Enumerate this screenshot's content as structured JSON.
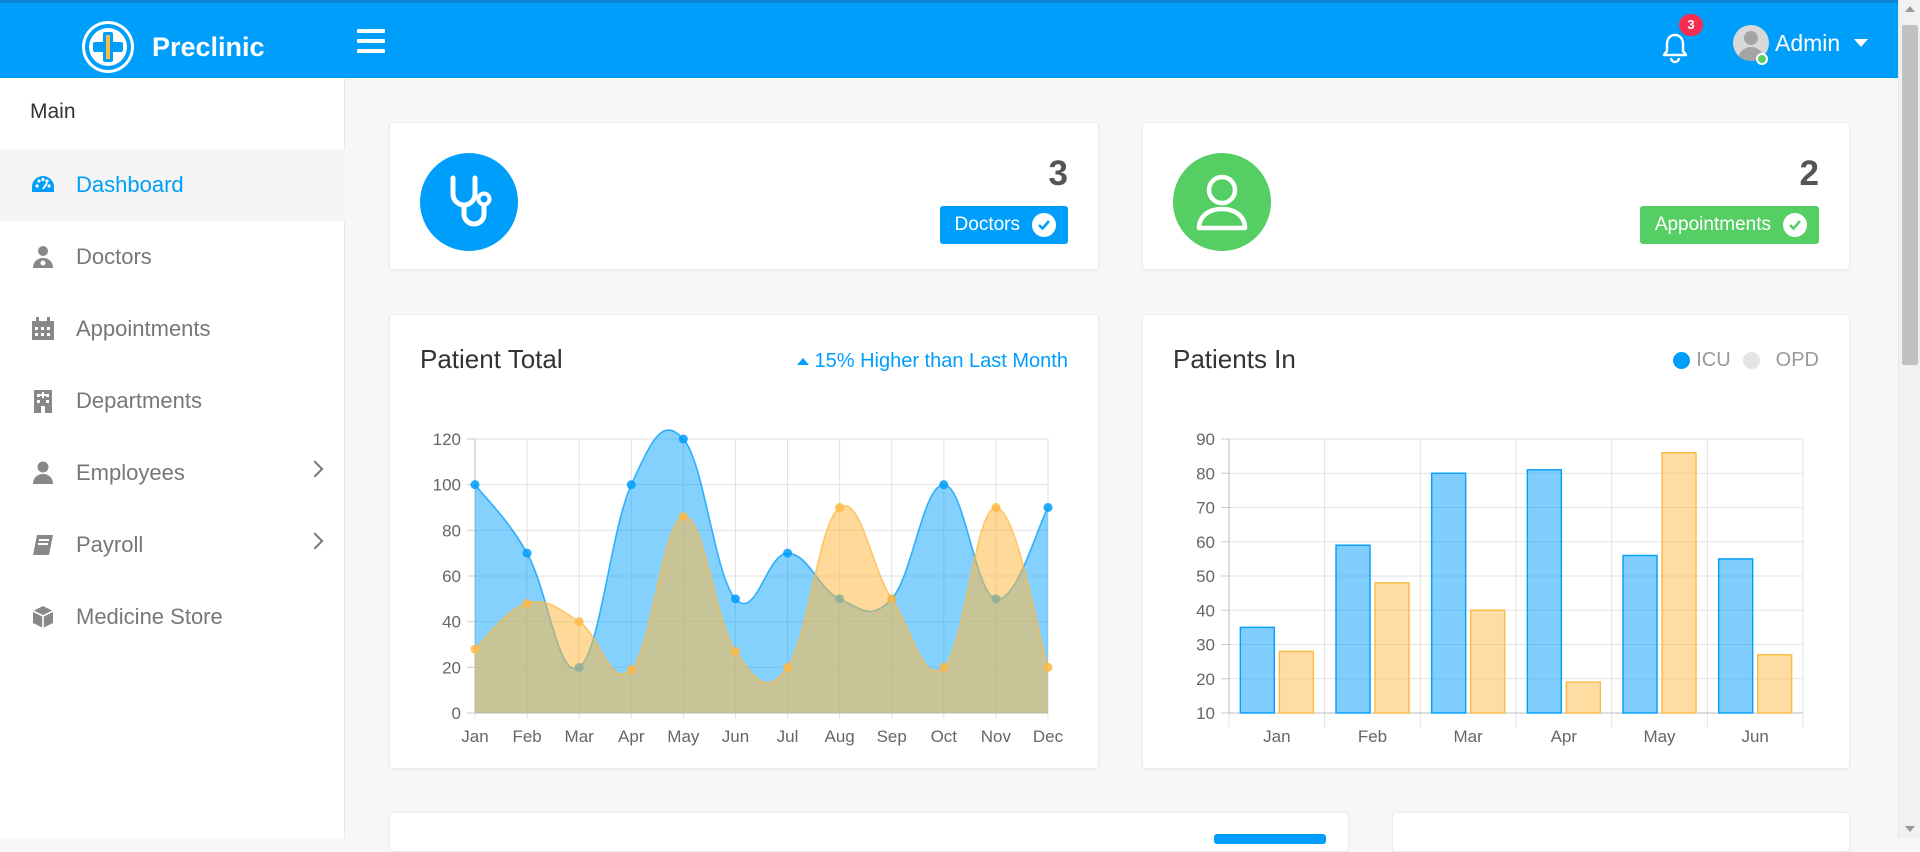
{
  "brand": {
    "name": "Preclinic",
    "accent": "#009efb"
  },
  "header": {
    "notification_count": "3",
    "user_name": "Admin"
  },
  "sidebar": {
    "section_title": "Main",
    "items": [
      {
        "label": "Dashboard",
        "icon": "dashboard-icon",
        "active": true
      },
      {
        "label": "Doctors",
        "icon": "doctor-icon"
      },
      {
        "label": "Appointments",
        "icon": "calendar-icon"
      },
      {
        "label": "Departments",
        "icon": "hospital-icon"
      },
      {
        "label": "Employees",
        "icon": "user-icon",
        "has_submenu": true
      },
      {
        "label": "Payroll",
        "icon": "book-icon",
        "has_submenu": true
      },
      {
        "label": "Medicine Store",
        "icon": "cube-icon"
      }
    ]
  },
  "stats": {
    "doctors": {
      "count": "3",
      "label": "Doctors",
      "color": "#009efb",
      "icon": "stethoscope-icon"
    },
    "appointments": {
      "count": "2",
      "label": "Appointments",
      "color": "#55ce63",
      "icon": "user-icon"
    }
  },
  "patient_total": {
    "title": "Patient Total",
    "growth": "15% Higher than Last Month"
  },
  "patients_in": {
    "title": "Patients In",
    "legend": [
      "ICU",
      "OPD"
    ]
  },
  "chart_data": [
    {
      "type": "area",
      "title": "Patient Total",
      "categories": [
        "Jan",
        "Feb",
        "Mar",
        "Apr",
        "May",
        "Jun",
        "Jul",
        "Aug",
        "Sep",
        "Oct",
        "Nov",
        "Dec"
      ],
      "series": [
        {
          "values": [
            100,
            70,
            20,
            100,
            120,
            50,
            70,
            50,
            50,
            100,
            50,
            90
          ],
          "color": "#009efb"
        },
        {
          "values": [
            28,
            48,
            40,
            19,
            86,
            27,
            20,
            90,
            50,
            20,
            90,
            20
          ],
          "color": "#fdb945"
        }
      ],
      "ylim": [
        0,
        120
      ],
      "yticks": [
        0,
        20,
        40,
        60,
        80,
        100,
        120
      ],
      "grid": true
    },
    {
      "type": "bar",
      "title": "Patients In",
      "categories": [
        "Jan",
        "Feb",
        "Mar",
        "Apr",
        "May",
        "Jun"
      ],
      "series": [
        {
          "name": "ICU",
          "values": [
            35,
            59,
            80,
            81,
            56,
            55
          ],
          "color": "#009efb"
        },
        {
          "name": "OPD",
          "values": [
            28,
            48,
            40,
            19,
            86,
            27
          ],
          "color": "#fdb945"
        }
      ],
      "ylim": [
        10,
        90
      ],
      "yticks": [
        10,
        20,
        30,
        40,
        50,
        60,
        70,
        80,
        90
      ],
      "grid": true,
      "legend": "top-right"
    }
  ]
}
